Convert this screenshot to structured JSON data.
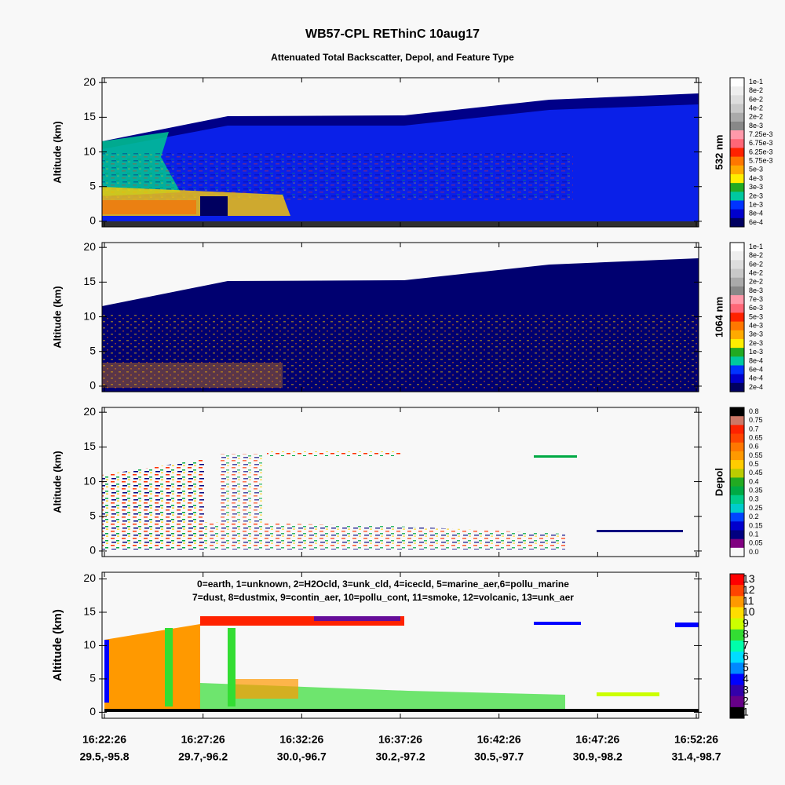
{
  "title": "WB57-CPL REThinC 10aug17",
  "subtitle": "Attenuated Total Backscatter, Depol, and Feature Type",
  "x_ticks": [
    "16:22:26",
    "16:27:26",
    "16:32:26",
    "16:37:26",
    "16:42:26",
    "16:47:26",
    "16:52:26"
  ],
  "x_tick_locations": [
    "29.5,-95.8",
    "29.7,-96.2",
    "30.0,-96.7",
    "30.2,-97.2",
    "30.5,-97.7",
    "30.9,-98.2",
    "31.4,-98.7"
  ],
  "chart_data": [
    {
      "type": "heatmap",
      "ylabel": "Altitude (km)",
      "ylim": [
        -0.8,
        20.7
      ],
      "yticks": [
        0,
        5,
        10,
        15,
        20
      ],
      "colorbar": {
        "title": "532 nm",
        "labels": [
          "1e-1",
          "8e-2",
          "6e-2",
          "4e-2",
          "2e-2",
          "8e-3",
          "7.25e-3",
          "6.75e-3",
          "6.25e-3",
          "5.75e-3",
          "5e-3",
          "4e-3",
          "3e-3",
          "2e-3",
          "1e-3",
          "8e-4",
          "6e-4"
        ],
        "colors": [
          "#ffffff",
          "#eeeeee",
          "#dddddd",
          "#c8c8c8",
          "#aaaaaa",
          "#888888",
          "#ff99aa",
          "#ff6677",
          "#ff2200",
          "#ff7700",
          "#ffaa00",
          "#ffee00",
          "#22aa22",
          "#00c8a0",
          "#0033ff",
          "#0000cc",
          "#000060"
        ]
      }
    },
    {
      "type": "heatmap",
      "ylabel": "Altitude (km)",
      "ylim": [
        -0.8,
        20.7
      ],
      "yticks": [
        0,
        5,
        10,
        15,
        20
      ],
      "colorbar": {
        "title": "1064 nm",
        "labels": [
          "1e-1",
          "8e-2",
          "6e-2",
          "4e-2",
          "2e-2",
          "8e-3",
          "7e-3",
          "6e-3",
          "5e-3",
          "4e-3",
          "3e-3",
          "2e-3",
          "1e-3",
          "8e-4",
          "6e-4",
          "4e-4",
          "2e-4"
        ],
        "colors": [
          "#ffffff",
          "#eeeeee",
          "#dddddd",
          "#c8c8c8",
          "#aaaaaa",
          "#888888",
          "#ff99aa",
          "#ff6677",
          "#ff2200",
          "#ff7700",
          "#ffaa00",
          "#ffee00",
          "#22aa22",
          "#00c8a0",
          "#0033ff",
          "#0000cc",
          "#000060"
        ]
      }
    },
    {
      "type": "heatmap",
      "ylabel": "Altitude (km)",
      "ylim": [
        -0.8,
        20.7
      ],
      "yticks": [
        0,
        5,
        10,
        15,
        20
      ],
      "colorbar": {
        "title": "Depol",
        "labels": [
          "0.8",
          "0.75",
          "0.7",
          "0.65",
          "0.6",
          "0.55",
          "0.5",
          "0.45",
          "0.4",
          "0.35",
          "0.3",
          "0.25",
          "0.2",
          "0.15",
          "0.1",
          "0.05",
          "0.0"
        ],
        "colors": [
          "#000000",
          "#cc7766",
          "#ff2200",
          "#ff4400",
          "#ff7700",
          "#ff9900",
          "#ffcc00",
          "#bbcc00",
          "#22aa22",
          "#00aa44",
          "#00cc88",
          "#00cccc",
          "#0044ff",
          "#0000cc",
          "#000080",
          "#800080",
          "#f8f8f8"
        ]
      }
    },
    {
      "type": "heatmap",
      "ylabel": "Altitude (km)",
      "ylim": [
        -0.9,
        21
      ],
      "yticks": [
        0,
        5,
        10,
        15,
        20
      ],
      "legend_text": [
        "0=earth, 1=unknown, 2=H2Ocld, 3=unk_cld, 4=icecld, 5=marine_aer,6=pollu_marine",
        "7=dust, 8=dustmix, 9=contin_aer, 10=pollu_cont, 11=smoke, 12=volcanic, 13=unk_aer"
      ],
      "colorbar": {
        "labels": [
          13,
          12,
          11,
          10,
          9,
          8,
          7,
          6,
          5,
          4,
          3,
          2,
          1
        ],
        "colors": [
          "#ff0000",
          "#ff4400",
          "#ff9900",
          "#ffdd00",
          "#ccff00",
          "#33dd33",
          "#00ffaa",
          "#00ddff",
          "#0088ff",
          "#0000ff",
          "#3300aa",
          "#660088",
          "#000000"
        ]
      }
    }
  ]
}
